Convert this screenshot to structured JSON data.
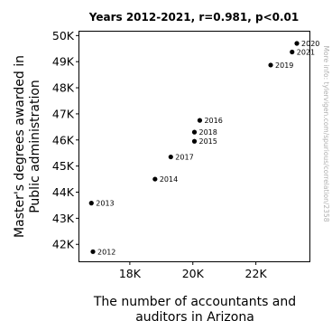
{
  "chart_data": {
    "type": "scatter",
    "title": "Years 2012-2021, r=0.981, p<0.01",
    "xlabel": [
      "The number of accountants and",
      "auditors in Arizona"
    ],
    "ylabel": [
      "Master's degrees awarded in",
      "Public administration"
    ],
    "xlim": [
      16400,
      23700
    ],
    "ylim": [
      41350,
      50150
    ],
    "xticks": [
      18000,
      20000,
      22000
    ],
    "xtick_labels": [
      "18K",
      "20K",
      "22K"
    ],
    "yticks": [
      42000,
      43000,
      44000,
      45000,
      46000,
      47000,
      48000,
      49000,
      50000
    ],
    "ytick_labels": [
      "42K",
      "43K",
      "44K",
      "45K",
      "46K",
      "47K",
      "48K",
      "49K",
      "50K"
    ],
    "grid": false,
    "point_color": "#000000",
    "points": [
      {
        "label": "2012",
        "x": 16830,
        "y": 41720
      },
      {
        "label": "2013",
        "x": 16780,
        "y": 43580
      },
      {
        "label": "2014",
        "x": 18800,
        "y": 44500
      },
      {
        "label": "2015",
        "x": 20050,
        "y": 45950
      },
      {
        "label": "2016",
        "x": 20220,
        "y": 46750
      },
      {
        "label": "2017",
        "x": 19300,
        "y": 45350
      },
      {
        "label": "2018",
        "x": 20050,
        "y": 46300
      },
      {
        "label": "2019",
        "x": 22470,
        "y": 48870
      },
      {
        "label": "2020",
        "x": 23300,
        "y": 49700
      },
      {
        "label": "2021",
        "x": 23150,
        "y": 49370
      }
    ]
  },
  "watermark": "More info: tylervigen.com/spurious/correlation/2358"
}
